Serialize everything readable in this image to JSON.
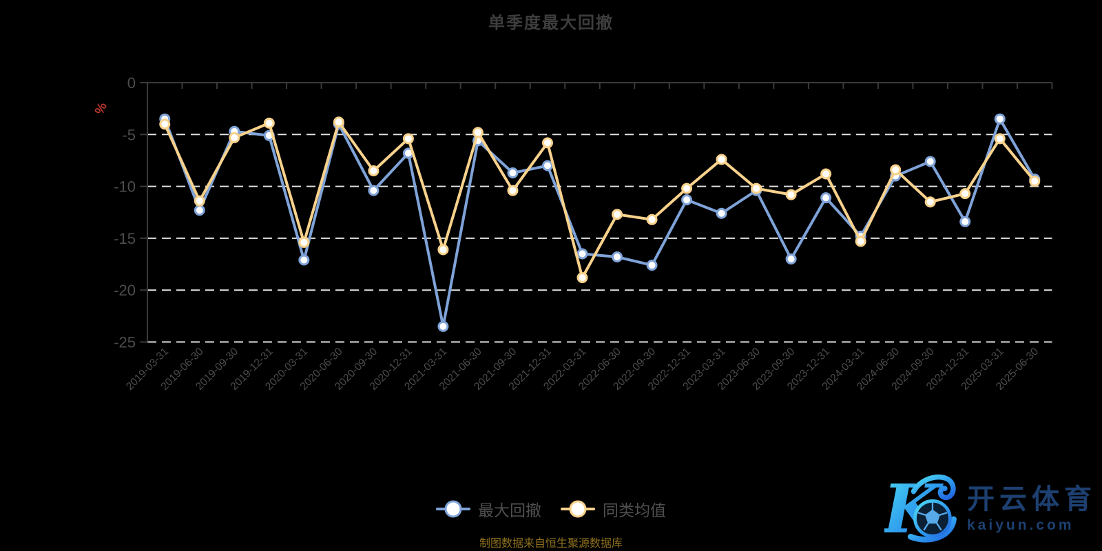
{
  "title": "单季度最大回撤",
  "y_axis": {
    "unit": "%",
    "tick_labels": [
      "0",
      "-5",
      "-10",
      "-15",
      "-20",
      "-25"
    ]
  },
  "legend": [
    {
      "label": "最大回撤",
      "color": "#7fa3d8"
    },
    {
      "label": "同类均值",
      "color": "#f8d28c"
    }
  ],
  "footer": "制图数据来自恒生聚源数据库",
  "watermark": {
    "brand": "开云体育",
    "domain": "kaiyun.com"
  },
  "colors": {
    "background": "#000000",
    "title": "#3d3d3d",
    "axis_line": "#3a3a3a",
    "axis_label": "#4d4d4d",
    "grid_dash": "#e2e2e2",
    "unit_red": "#b5362c",
    "footer_gold": "#8e701d",
    "watermark_blue": "#1d4071"
  },
  "chart_data": {
    "type": "line",
    "title": "单季度最大回撤",
    "ylabel": "%",
    "ylim": [
      -25,
      0
    ],
    "y_ticks": [
      0,
      -5,
      -10,
      -15,
      -20,
      -25
    ],
    "grid": "horizontal-dashed",
    "legend_position": "bottom-center",
    "categories": [
      "2019-03-31",
      "2019-06-30",
      "2019-09-30",
      "2019-12-31",
      "2020-03-31",
      "2020-06-30",
      "2020-09-30",
      "2020-12-31",
      "2021-03-31",
      "2021-06-30",
      "2021-09-30",
      "2021-12-31",
      "2022-03-31",
      "2022-06-30",
      "2022-09-30",
      "2022-12-31",
      "2023-03-31",
      "2023-06-30",
      "2023-09-30",
      "2023-12-31",
      "2024-03-31",
      "2024-06-30",
      "2024-09-30",
      "2024-12-31",
      "2025-03-31",
      "2025-06-30"
    ],
    "series": [
      {
        "name": "最大回撤",
        "color": "#7fa3d8",
        "values": [
          -3.5,
          -12.3,
          -4.7,
          -5.1,
          -17.1,
          -4.0,
          -10.4,
          -6.8,
          -23.5,
          -5.6,
          -8.7,
          -8.0,
          -16.5,
          -16.8,
          -17.6,
          -11.3,
          -12.6,
          -10.4,
          -17.0,
          -11.1,
          -14.8,
          -9.0,
          -7.6,
          -13.4,
          -3.5,
          -9.3
        ]
      },
      {
        "name": "同类均值",
        "color": "#f8d28c",
        "values": [
          -4.0,
          -11.4,
          -5.3,
          -3.9,
          -15.4,
          -3.8,
          -8.5,
          -5.4,
          -16.1,
          -4.8,
          -10.4,
          -5.8,
          -18.8,
          -12.7,
          -13.2,
          -10.2,
          -7.4,
          -10.2,
          -10.8,
          -8.8,
          -15.3,
          -8.4,
          -11.5,
          -10.7,
          -5.4,
          -9.5
        ]
      }
    ]
  }
}
